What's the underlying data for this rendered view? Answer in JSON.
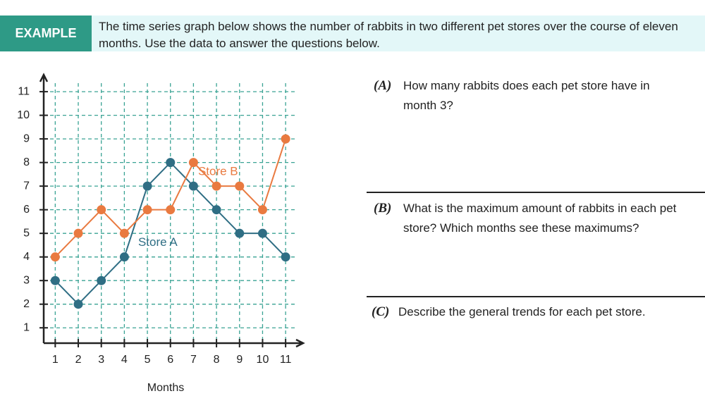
{
  "header": {
    "badge": "EXAMPLE",
    "text": "The time series graph below shows the number of rabbits in two different pet stores over the course of eleven months. Use the data to answer the questions below."
  },
  "chart_data": {
    "type": "line",
    "x_label": "Months",
    "x": [
      1,
      2,
      3,
      4,
      5,
      6,
      7,
      8,
      9,
      10,
      11
    ],
    "series": [
      {
        "name": "Store A",
        "color": "#2f6e84",
        "values": [
          3,
          2,
          3,
          4,
          7,
          8,
          7,
          6,
          5,
          5,
          4
        ]
      },
      {
        "name": "Store B",
        "color": "#e97a40",
        "values": [
          4,
          5,
          6,
          5,
          6,
          6,
          8,
          7,
          7,
          6,
          9
        ]
      }
    ],
    "xlim": [
      0.5,
      11.7
    ],
    "ylim": [
      0.35,
      11.6
    ],
    "xticks": [
      1,
      2,
      3,
      4,
      5,
      6,
      7,
      8,
      9,
      10,
      11
    ],
    "yticks": [
      1,
      2,
      3,
      4,
      5,
      6,
      7,
      8,
      9,
      10,
      11
    ],
    "grid": true
  },
  "questions": [
    {
      "label": "(A)",
      "text": "How many rabbits does each pet store have in month 3?"
    },
    {
      "label": "(B)",
      "text": "What is the maximum amount of rabbits in each pet store?  Which months see these maximums?"
    },
    {
      "label": "(C)",
      "text": "Describe the general trends for each pet store."
    }
  ]
}
